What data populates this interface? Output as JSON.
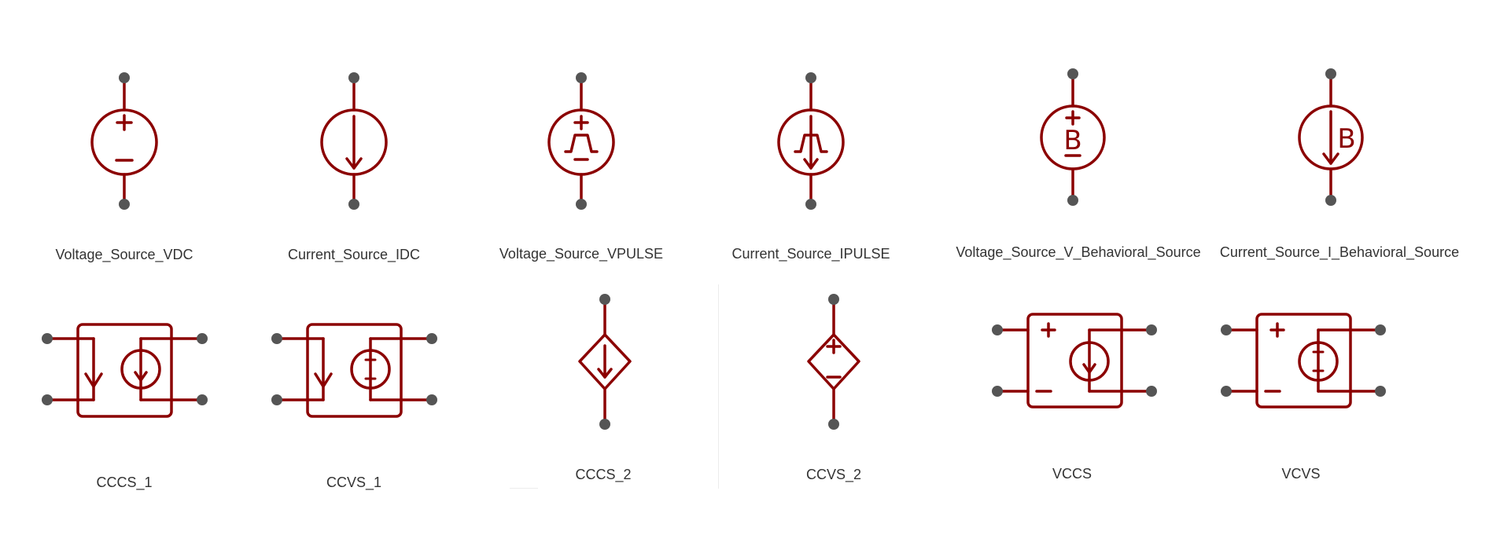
{
  "colors": {
    "symbol": "#8b0000",
    "pin": "#555555",
    "label": "#333333",
    "background": "#ffffff"
  },
  "components": [
    {
      "label": "Voltage_Source_VDC",
      "icon": "voltage-source-vdc-icon"
    },
    {
      "label": "Current_Source_IDC",
      "icon": "current-source-idc-icon"
    },
    {
      "label": "Voltage_Source_VPULSE",
      "icon": "voltage-source-vpulse-icon"
    },
    {
      "label": "Current_Source_IPULSE",
      "icon": "current-source-ipulse-icon"
    },
    {
      "label": "Voltage_Source_V_Behavioral_Source",
      "icon": "voltage-behavioral-source-icon"
    },
    {
      "label": "Current_Source_I_Behavioral_Source",
      "icon": "current-behavioral-source-icon"
    },
    {
      "label": "CCCS_1",
      "icon": "cccs-1-icon"
    },
    {
      "label": "CCVS_1",
      "icon": "ccvs-1-icon"
    },
    {
      "label": "CCCS_2",
      "icon": "cccs-2-icon"
    },
    {
      "label": "CCVS_2",
      "icon": "ccvs-2-icon"
    },
    {
      "label": "VCCS",
      "icon": "vccs-icon"
    },
    {
      "label": "VCVS",
      "icon": "vcvs-icon"
    }
  ]
}
